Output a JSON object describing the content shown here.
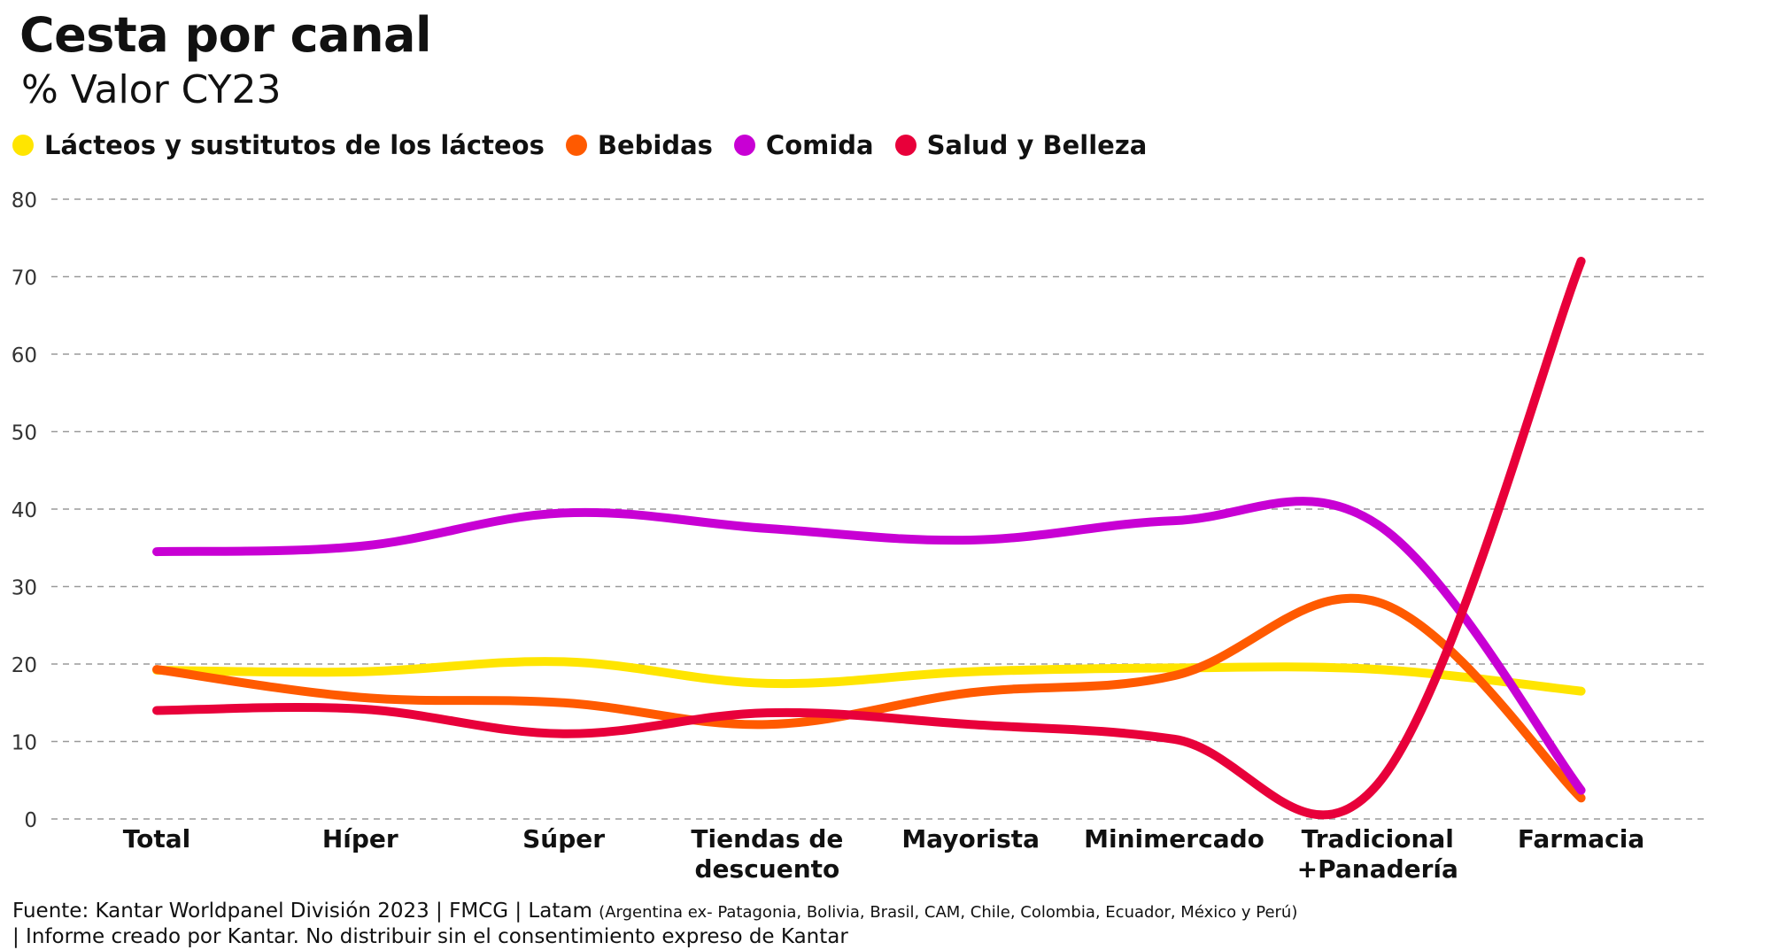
{
  "header": {
    "title": "Cesta por canal",
    "subtitle": "% Valor CY23"
  },
  "colors": {
    "grid": "#9a9a9a",
    "text": "#111111"
  },
  "chart_data": {
    "type": "line",
    "title": "Cesta por canal",
    "subtitle": "% Valor CY23",
    "xlabel": "",
    "ylabel": "",
    "ylim": [
      0,
      80
    ],
    "yticks": [
      0,
      10,
      20,
      30,
      40,
      50,
      60,
      70,
      80
    ],
    "grid": true,
    "legend_position": "top-left",
    "categories": [
      [
        "Total"
      ],
      [
        "Híper"
      ],
      [
        "Súper"
      ],
      [
        "Tiendas de",
        "descuento"
      ],
      [
        "Mayorista"
      ],
      [
        "Minimercado"
      ],
      [
        "Tradicional",
        "+Panadería"
      ],
      [
        "Farmacia"
      ]
    ],
    "series": [
      {
        "name": "Lácteos y sustitutos de los lácteos",
        "color": "#FFE500",
        "values": [
          19.2,
          19.0,
          20.3,
          17.5,
          19.0,
          19.5,
          19.3,
          16.5
        ]
      },
      {
        "name": "Bebidas",
        "color": "#FF5A00",
        "values": [
          19.3,
          15.7,
          15.0,
          12.2,
          16.3,
          18.5,
          28.0,
          2.7
        ]
      },
      {
        "name": "Comida",
        "color": "#C800D4",
        "values": [
          34.5,
          35.2,
          39.5,
          37.5,
          36.0,
          38.5,
          38.0,
          3.7
        ]
      },
      {
        "name": "Salud y Belleza",
        "color": "#E8003A",
        "values": [
          14.0,
          14.2,
          11.0,
          13.7,
          12.2,
          10.3,
          4.5,
          72.0
        ]
      }
    ]
  },
  "footer": {
    "source_main": "Fuente: Kantar Worldpanel División 2023 | FMCG | Latam ",
    "source_countries": "(Argentina ex- Patagonia, Bolivia, Brasil, CAM, Chile, Colombia, Ecuador, México y Perú)",
    "note": "| Informe creado por Kantar. No distribuir sin el consentimiento expreso de Kantar"
  }
}
